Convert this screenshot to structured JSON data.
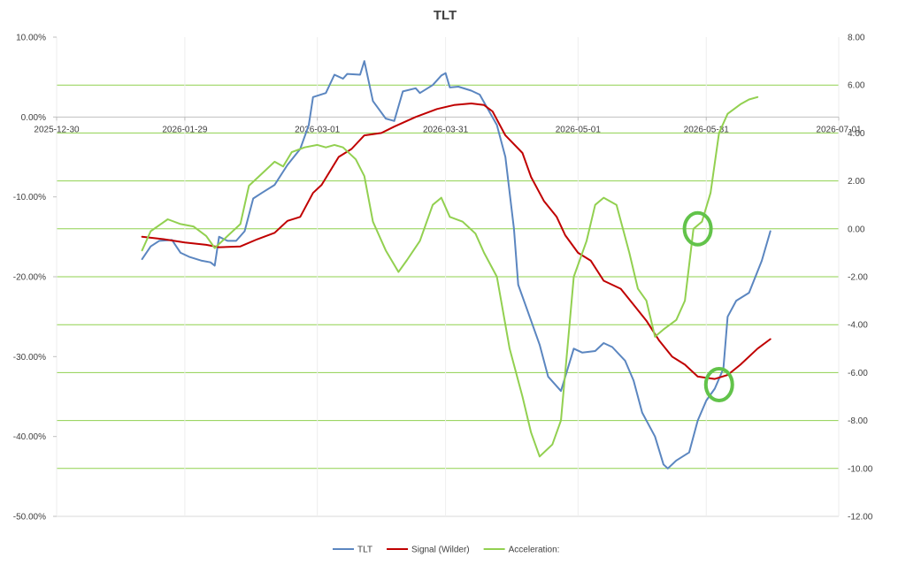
{
  "chart_data": {
    "type": "line",
    "title": "TLT",
    "x_tick_labels": [
      "2025-12-30",
      "2026-01-29",
      "2026-03-01",
      "2026-03-31",
      "2026-05-01",
      "2026-05-31",
      "2026-07-01"
    ],
    "x_range": [
      "2025-12-30",
      "2026-07-01"
    ],
    "y_left": {
      "range": [
        -50,
        10
      ],
      "ticks": [
        "10.00%",
        "0.00%",
        "-10.00%",
        "-20.00%",
        "-30.00%",
        "-40.00%",
        "-50.00%"
      ]
    },
    "y_right": {
      "range": [
        -12,
        8
      ],
      "ticks": [
        "8.00",
        "6.00",
        "4.00",
        "2.00",
        "0.00",
        "-2.00",
        "-4.00",
        "-6.00",
        "-8.00",
        "-10.00",
        "-12.00"
      ]
    },
    "grid": "horizontal lines on right axis ticks",
    "legend_position": "bottom",
    "colors": {
      "TLT": "#5b86c0",
      "Signal (Wilder)": "#c00000",
      "Acceleration:": "#92d050",
      "grid": "#8fd14f",
      "circle": "#62c34a"
    },
    "series": [
      {
        "name": "TLT",
        "axis": "left",
        "color": "#5b86c0",
        "points": [
          [
            "2026-01-19",
            -17.8
          ],
          [
            "2026-01-21",
            -16.2
          ],
          [
            "2026-01-23",
            -15.5
          ],
          [
            "2026-01-26",
            -15.4
          ],
          [
            "2026-01-28",
            -17.0
          ],
          [
            "2026-01-30",
            -17.5
          ],
          [
            "2026-02-02",
            -18.0
          ],
          [
            "2026-02-04",
            -18.2
          ],
          [
            "2026-02-05",
            -18.6
          ],
          [
            "2026-02-06",
            -15.0
          ],
          [
            "2026-02-08",
            -15.5
          ],
          [
            "2026-02-10",
            -15.5
          ],
          [
            "2026-02-12",
            -14.3
          ],
          [
            "2026-02-14",
            -10.2
          ],
          [
            "2026-02-16",
            -9.5
          ],
          [
            "2026-02-19",
            -8.5
          ],
          [
            "2026-02-22",
            -6.0
          ],
          [
            "2026-02-25",
            -4.0
          ],
          [
            "2026-02-27",
            -1.0
          ],
          [
            "2026-02-28",
            2.5
          ],
          [
            "2026-03-03",
            3.0
          ],
          [
            "2026-03-05",
            5.3
          ],
          [
            "2026-03-07",
            4.8
          ],
          [
            "2026-03-08",
            5.4
          ],
          [
            "2026-03-11",
            5.3
          ],
          [
            "2026-03-12",
            7.0
          ],
          [
            "2026-03-14",
            2.0
          ],
          [
            "2026-03-17",
            -0.2
          ],
          [
            "2026-03-19",
            -0.5
          ],
          [
            "2026-03-21",
            3.2
          ],
          [
            "2026-03-24",
            3.6
          ],
          [
            "2026-03-25",
            3.0
          ],
          [
            "2026-03-28",
            4.0
          ],
          [
            "2026-03-30",
            5.2
          ],
          [
            "2026-03-31",
            5.5
          ],
          [
            "2026-04-01",
            3.7
          ],
          [
            "2026-04-03",
            3.8
          ],
          [
            "2026-04-06",
            3.3
          ],
          [
            "2026-04-08",
            2.8
          ],
          [
            "2026-04-12",
            -1.0
          ],
          [
            "2026-04-14",
            -5.0
          ],
          [
            "2026-04-16",
            -14.0
          ],
          [
            "2026-04-17",
            -21.0
          ],
          [
            "2026-04-19",
            -24.0
          ],
          [
            "2026-04-22",
            -28.5
          ],
          [
            "2026-04-24",
            -32.5
          ],
          [
            "2026-04-27",
            -34.3
          ],
          [
            "2026-04-30",
            -29.0
          ],
          [
            "2026-05-02",
            -29.5
          ],
          [
            "2026-05-05",
            -29.3
          ],
          [
            "2026-05-07",
            -28.3
          ],
          [
            "2026-05-09",
            -28.8
          ],
          [
            "2026-05-12",
            -30.5
          ],
          [
            "2026-05-14",
            -33.0
          ],
          [
            "2026-05-16",
            -37.0
          ],
          [
            "2026-05-19",
            -40.0
          ],
          [
            "2026-05-21",
            -43.5
          ],
          [
            "2026-05-22",
            -44.0
          ],
          [
            "2026-05-24",
            -43.0
          ],
          [
            "2026-05-27",
            -42.0
          ],
          [
            "2026-05-29",
            -38.0
          ],
          [
            "2026-05-31",
            -35.5
          ],
          [
            "2026-06-02",
            -34.0
          ],
          [
            "2026-06-04",
            -31.5
          ],
          [
            "2026-06-05",
            -25.0
          ],
          [
            "2026-06-07",
            -23.0
          ],
          [
            "2026-06-10",
            -22.0
          ],
          [
            "2026-06-13",
            -18.0
          ],
          [
            "2026-06-15",
            -14.3
          ]
        ]
      },
      {
        "name": "Signal (Wilder)",
        "axis": "left",
        "color": "#c00000",
        "points": [
          [
            "2026-01-19",
            -15.0
          ],
          [
            "2026-01-24",
            -15.3
          ],
          [
            "2026-01-29",
            -15.7
          ],
          [
            "2026-02-03",
            -16.0
          ],
          [
            "2026-02-06",
            -16.3
          ],
          [
            "2026-02-11",
            -16.2
          ],
          [
            "2026-02-15",
            -15.3
          ],
          [
            "2026-02-19",
            -14.5
          ],
          [
            "2026-02-22",
            -13.0
          ],
          [
            "2026-02-25",
            -12.5
          ],
          [
            "2026-02-28",
            -9.5
          ],
          [
            "2026-03-02",
            -8.5
          ],
          [
            "2026-03-06",
            -5.0
          ],
          [
            "2026-03-09",
            -4.0
          ],
          [
            "2026-03-12",
            -2.3
          ],
          [
            "2026-03-16",
            -2.0
          ],
          [
            "2026-03-19",
            -1.2
          ],
          [
            "2026-03-24",
            0.0
          ],
          [
            "2026-03-29",
            1.0
          ],
          [
            "2026-04-02",
            1.5
          ],
          [
            "2026-04-06",
            1.7
          ],
          [
            "2026-04-09",
            1.5
          ],
          [
            "2026-04-11",
            0.7
          ],
          [
            "2026-04-14",
            -2.3
          ],
          [
            "2026-04-18",
            -4.5
          ],
          [
            "2026-04-20",
            -7.5
          ],
          [
            "2026-04-23",
            -10.5
          ],
          [
            "2026-04-26",
            -12.5
          ],
          [
            "2026-04-28",
            -14.8
          ],
          [
            "2026-05-01",
            -17.0
          ],
          [
            "2026-05-04",
            -18.0
          ],
          [
            "2026-05-07",
            -20.5
          ],
          [
            "2026-05-11",
            -21.5
          ],
          [
            "2026-05-14",
            -23.5
          ],
          [
            "2026-05-17",
            -25.5
          ],
          [
            "2026-05-20",
            -28.0
          ],
          [
            "2026-05-23",
            -30.0
          ],
          [
            "2026-05-26",
            -31.0
          ],
          [
            "2026-05-29",
            -32.5
          ],
          [
            "2026-06-02",
            -32.8
          ],
          [
            "2026-06-05",
            -32.3
          ],
          [
            "2026-06-08",
            -31.0
          ],
          [
            "2026-06-12",
            -29.0
          ],
          [
            "2026-06-15",
            -27.8
          ]
        ]
      },
      {
        "name": "Acceleration:",
        "axis": "right",
        "color": "#92d050",
        "points": [
          [
            "2026-01-19",
            -0.9
          ],
          [
            "2026-01-21",
            -0.1
          ],
          [
            "2026-01-25",
            0.4
          ],
          [
            "2026-01-28",
            0.2
          ],
          [
            "2026-01-31",
            0.1
          ],
          [
            "2026-02-03",
            -0.3
          ],
          [
            "2026-02-05",
            -0.8
          ],
          [
            "2026-02-08",
            -0.3
          ],
          [
            "2026-02-11",
            0.2
          ],
          [
            "2026-02-13",
            1.8
          ],
          [
            "2026-02-16",
            2.3
          ],
          [
            "2026-02-19",
            2.8
          ],
          [
            "2026-02-21",
            2.6
          ],
          [
            "2026-02-23",
            3.2
          ],
          [
            "2026-02-26",
            3.4
          ],
          [
            "2026-03-01",
            3.5
          ],
          [
            "2026-03-03",
            3.4
          ],
          [
            "2026-03-05",
            3.5
          ],
          [
            "2026-03-07",
            3.4
          ],
          [
            "2026-03-10",
            2.9
          ],
          [
            "2026-03-12",
            2.2
          ],
          [
            "2026-03-14",
            0.3
          ],
          [
            "2026-03-17",
            -0.9
          ],
          [
            "2026-03-20",
            -1.8
          ],
          [
            "2026-03-22",
            -1.3
          ],
          [
            "2026-03-25",
            -0.5
          ],
          [
            "2026-03-28",
            1.0
          ],
          [
            "2026-03-30",
            1.3
          ],
          [
            "2026-04-01",
            0.5
          ],
          [
            "2026-04-04",
            0.3
          ],
          [
            "2026-04-07",
            -0.2
          ],
          [
            "2026-04-09",
            -1.0
          ],
          [
            "2026-04-12",
            -2.0
          ],
          [
            "2026-04-15",
            -5.0
          ],
          [
            "2026-04-18",
            -7.0
          ],
          [
            "2026-04-20",
            -8.5
          ],
          [
            "2026-04-22",
            -9.5
          ],
          [
            "2026-04-25",
            -9.0
          ],
          [
            "2026-04-27",
            -8.0
          ],
          [
            "2026-04-29",
            -4.0
          ],
          [
            "2026-04-30",
            -2.0
          ],
          [
            "2026-05-03",
            -0.5
          ],
          [
            "2026-05-05",
            1.0
          ],
          [
            "2026-05-07",
            1.3
          ],
          [
            "2026-05-10",
            1.0
          ],
          [
            "2026-05-13",
            -1.0
          ],
          [
            "2026-05-15",
            -2.5
          ],
          [
            "2026-05-17",
            -3.0
          ],
          [
            "2026-05-19",
            -4.5
          ],
          [
            "2026-05-21",
            -4.2
          ],
          [
            "2026-05-24",
            -3.8
          ],
          [
            "2026-05-26",
            -3.0
          ],
          [
            "2026-05-28",
            0.0
          ],
          [
            "2026-05-30",
            0.3
          ],
          [
            "2026-06-01",
            1.5
          ],
          [
            "2026-06-03",
            4.0
          ],
          [
            "2026-06-05",
            4.8
          ],
          [
            "2026-06-08",
            5.2
          ],
          [
            "2026-06-10",
            5.4
          ],
          [
            "2026-06-12",
            5.5
          ]
        ]
      }
    ],
    "annotations": [
      {
        "type": "circle",
        "color": "#62c34a",
        "near": "Acceleration: crossing 0.00",
        "x": "2026-05-29",
        "y_right": 0.0
      },
      {
        "type": "circle",
        "color": "#62c34a",
        "near": "TLT crossing Signal (Wilder)",
        "x": "2026-06-03",
        "y_left": -33.5
      }
    ]
  }
}
